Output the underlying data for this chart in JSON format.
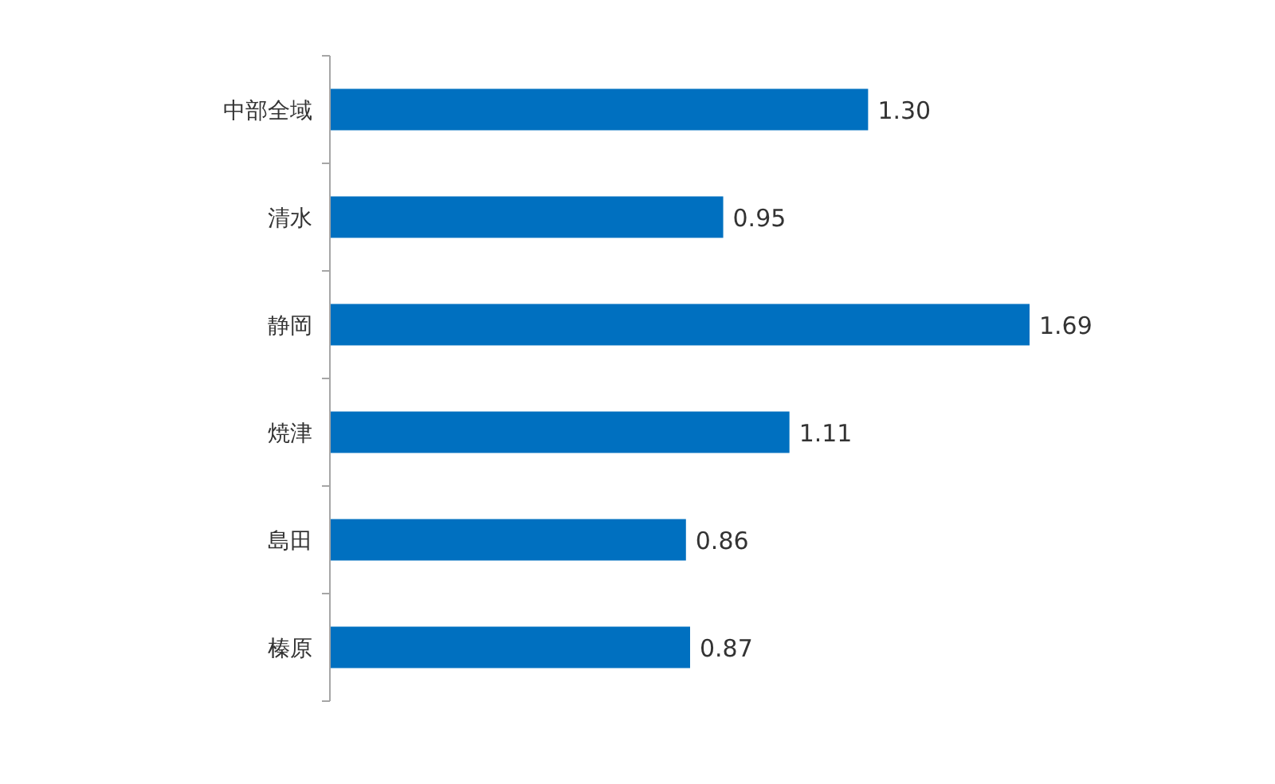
{
  "chart_data": {
    "type": "bar",
    "orientation": "horizontal",
    "categories": [
      "中部全域",
      "清水",
      "静岡",
      "焼津",
      "島田",
      "榛原"
    ],
    "values": [
      1.3,
      0.95,
      1.69,
      1.11,
      0.86,
      0.87
    ],
    "value_labels": [
      "1.30",
      "0.95",
      "1.69",
      "1.11",
      "0.86",
      "0.87"
    ],
    "color": "#0070c0"
  }
}
